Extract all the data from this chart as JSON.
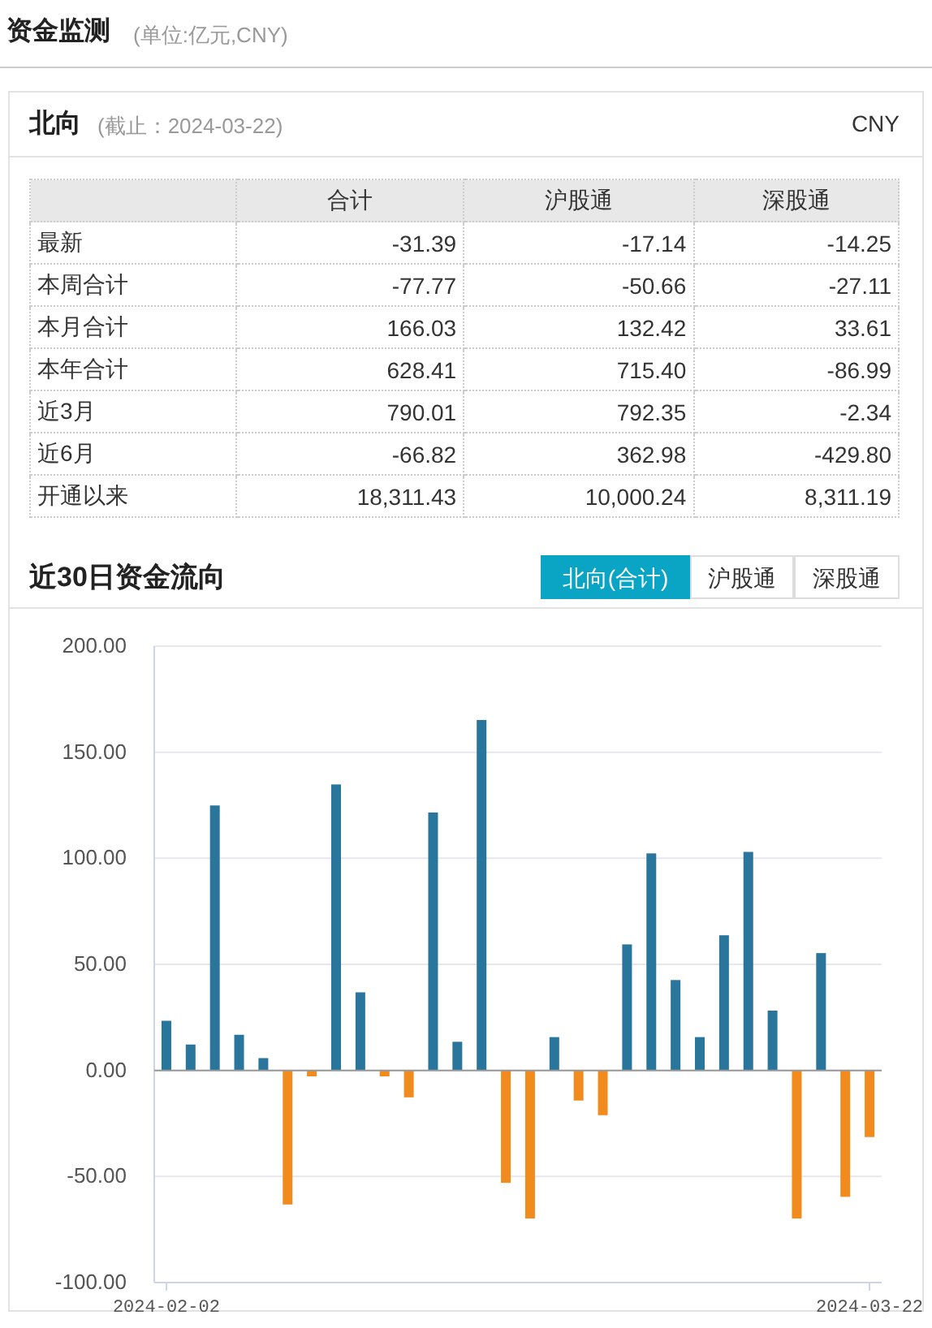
{
  "chart_data": [
    {
      "type": "other",
      "title": "资金监测",
      "subtitle": "(单位:亿元,CNY)",
      "annotations": [
        "北向",
        "(截止：2024-03-22)",
        "CNY"
      ],
      "categories": [
        "合计",
        "沪股通",
        "深股通"
      ],
      "y_categories": [
        "最新",
        "本周合计",
        "本月合计",
        "本年合计",
        "近3月",
        "近6月",
        "开通以来"
      ],
      "cell_labels": [
        [
          "-31.39",
          "-17.14",
          "-14.25"
        ],
        [
          "-77.77",
          "-50.66",
          "-27.11"
        ],
        [
          "166.03",
          "132.42",
          "33.61"
        ],
        [
          "628.41",
          "715.40",
          "-86.99"
        ],
        [
          "790.01",
          "792.35",
          "-2.34"
        ],
        [
          "-66.82",
          "362.98",
          "-429.80"
        ],
        [
          "18,311.43",
          "10,000.24",
          "8,311.19"
        ]
      ]
    },
    {
      "type": "bar",
      "title": "近30日资金流向",
      "annotations": [
        "北向(合计)",
        "沪股通",
        "深股通"
      ],
      "categories": [
        "2024-02-02",
        null,
        null,
        null,
        null,
        null,
        null,
        null,
        null,
        null,
        null,
        null,
        null,
        null,
        null,
        null,
        null,
        null,
        null,
        null,
        null,
        null,
        null,
        null,
        null,
        null,
        null,
        null,
        null,
        "2024-03-22"
      ],
      "values": [
        23.4,
        12.2,
        124.9,
        16.8,
        5.8,
        -63.2,
        -2.8,
        134.8,
        36.8,
        -2.8,
        -12.7,
        121.6,
        13.5,
        165.2,
        -53.0,
        -69.8,
        15.7,
        -14.2,
        -21.1,
        59.4,
        102.3,
        42.6,
        15.7,
        63.7,
        103.0,
        28.2,
        -69.8,
        55.3,
        -59.6,
        -31.4
      ],
      "colors": [
        "#2a759c",
        "#2a759c",
        "#2a759c",
        "#2a759c",
        "#2a759c",
        "#f28b1e",
        "#f28b1e",
        "#2a759c",
        "#2a759c",
        "#f28b1e",
        "#f28b1e",
        "#2a759c",
        "#2a759c",
        "#2a759c",
        "#f28b1e",
        "#f28b1e",
        "#2a759c",
        "#f28b1e",
        "#f28b1e",
        "#2a759c",
        "#2a759c",
        "#2a759c",
        "#2a759c",
        "#2a759c",
        "#2a759c",
        "#2a759c",
        "#f28b1e",
        "#2a759c",
        "#f28b1e",
        "#f28b1e"
      ],
      "ylim": [
        -100,
        200
      ],
      "yticks": [
        {
          "value": 200,
          "label": "200.00"
        },
        {
          "value": 150,
          "label": "150.00"
        },
        {
          "value": 100,
          "label": "100.00"
        },
        {
          "value": 50,
          "label": "50.00"
        },
        {
          "value": 0,
          "label": "0.00"
        },
        {
          "value": -50,
          "label": "-50.00"
        },
        {
          "value": -100,
          "label": "-100.00"
        }
      ],
      "grid": "y"
    }
  ]
}
